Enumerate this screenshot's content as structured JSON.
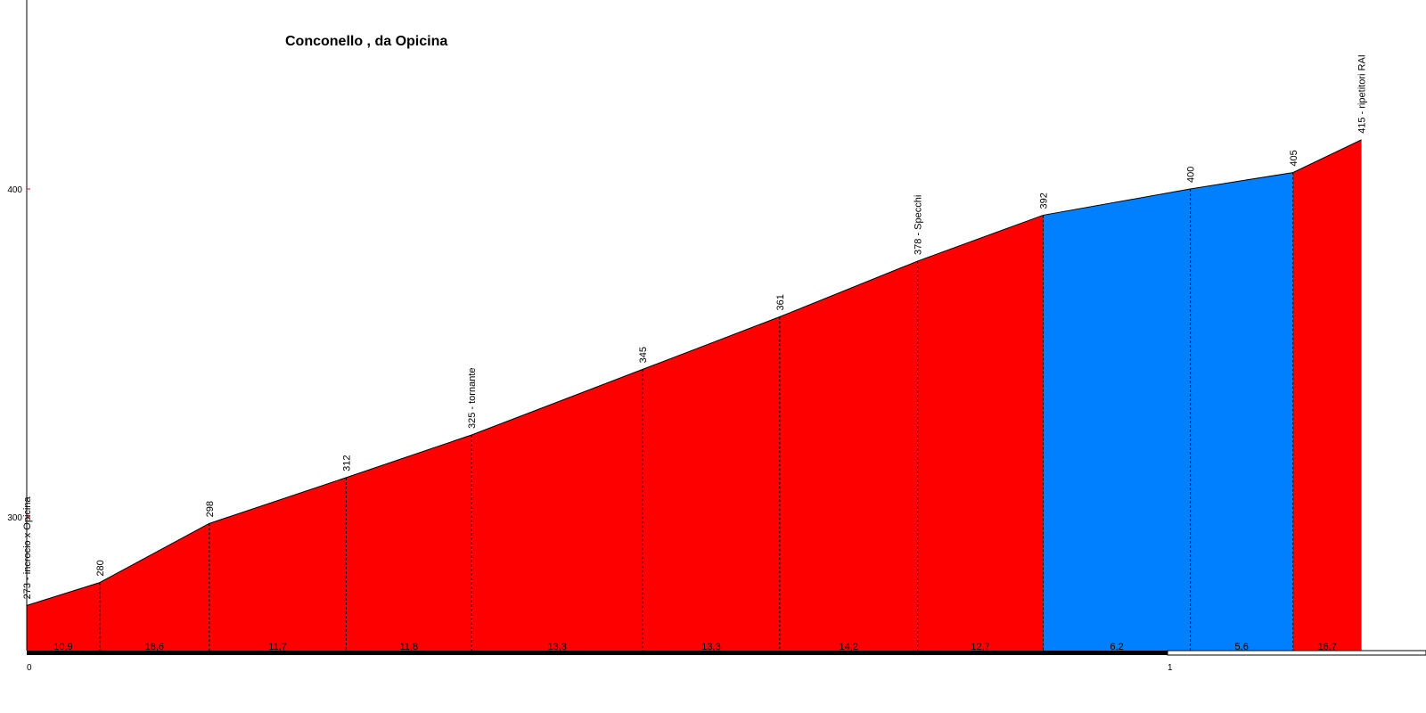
{
  "chart_data": {
    "type": "area",
    "title": "Conconello , da Opicina",
    "xlabel": "",
    "ylabel": "",
    "x_ticks": [
      "0",
      "1"
    ],
    "xlim": [
      0,
      1.25
    ],
    "y_ticks": [
      "300",
      "400"
    ],
    "ylim": [
      258,
      456
    ],
    "grid": false,
    "legend": "none",
    "colors": {
      "steep": "#ff0000",
      "moderate": "#0080ff",
      "axis": "#000000",
      "tick": "#ff0000"
    },
    "points": [
      {
        "x": 0.0,
        "elev": 273,
        "label": "273 - incrocio x Opicina"
      },
      {
        "x": 0.064,
        "elev": 280,
        "label": "280"
      },
      {
        "x": 0.16,
        "elev": 298,
        "label": "298"
      },
      {
        "x": 0.28,
        "elev": 312,
        "label": "312"
      },
      {
        "x": 0.39,
        "elev": 325,
        "label": "325 - tornante"
      },
      {
        "x": 0.54,
        "elev": 345,
        "label": "345"
      },
      {
        "x": 0.66,
        "elev": 361,
        "label": "361"
      },
      {
        "x": 0.781,
        "elev": 378,
        "label": "378 - Specchi"
      },
      {
        "x": 0.891,
        "elev": 392,
        "label": "392"
      },
      {
        "x": 1.02,
        "elev": 400,
        "label": "400"
      },
      {
        "x": 1.11,
        "elev": 405,
        "label": "405"
      },
      {
        "x": 1.17,
        "elev": 415,
        "label": "415 - ripetitori RAI"
      }
    ],
    "segments": [
      {
        "gradient": "10,9",
        "color": "steep"
      },
      {
        "gradient": "18,6",
        "color": "steep"
      },
      {
        "gradient": "11,7",
        "color": "steep"
      },
      {
        "gradient": "11,8",
        "color": "steep"
      },
      {
        "gradient": "13,3",
        "color": "steep"
      },
      {
        "gradient": "13,3",
        "color": "steep"
      },
      {
        "gradient": "14,2",
        "color": "steep"
      },
      {
        "gradient": "12,7",
        "color": "steep"
      },
      {
        "gradient": "6,2",
        "color": "moderate"
      },
      {
        "gradient": "5,6",
        "color": "moderate"
      },
      {
        "gradient": "16,7",
        "color": "steep"
      }
    ]
  }
}
